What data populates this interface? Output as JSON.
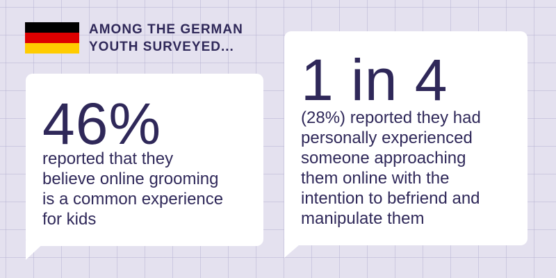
{
  "colors": {
    "background": "#e4e1ef",
    "text": "#2f2859",
    "bubble": "#ffffff",
    "flag_black": "#000000",
    "flag_red": "#dd0000",
    "flag_gold": "#ffcc00"
  },
  "flag": {
    "country": "Germany"
  },
  "heading": {
    "line1": "AMONG THE GERMAN",
    "line2": "YOUTH SURVEYED..."
  },
  "stat1": {
    "value": "46%",
    "lines": [
      "reported that they",
      "believe online grooming",
      "is a common experience",
      "for kids"
    ]
  },
  "stat2": {
    "value": "1 in 4",
    "lines": [
      "(28%) reported they had",
      "personally experienced",
      "someone approaching",
      "them online with the",
      "intention to befriend and",
      "manipulate them"
    ]
  }
}
